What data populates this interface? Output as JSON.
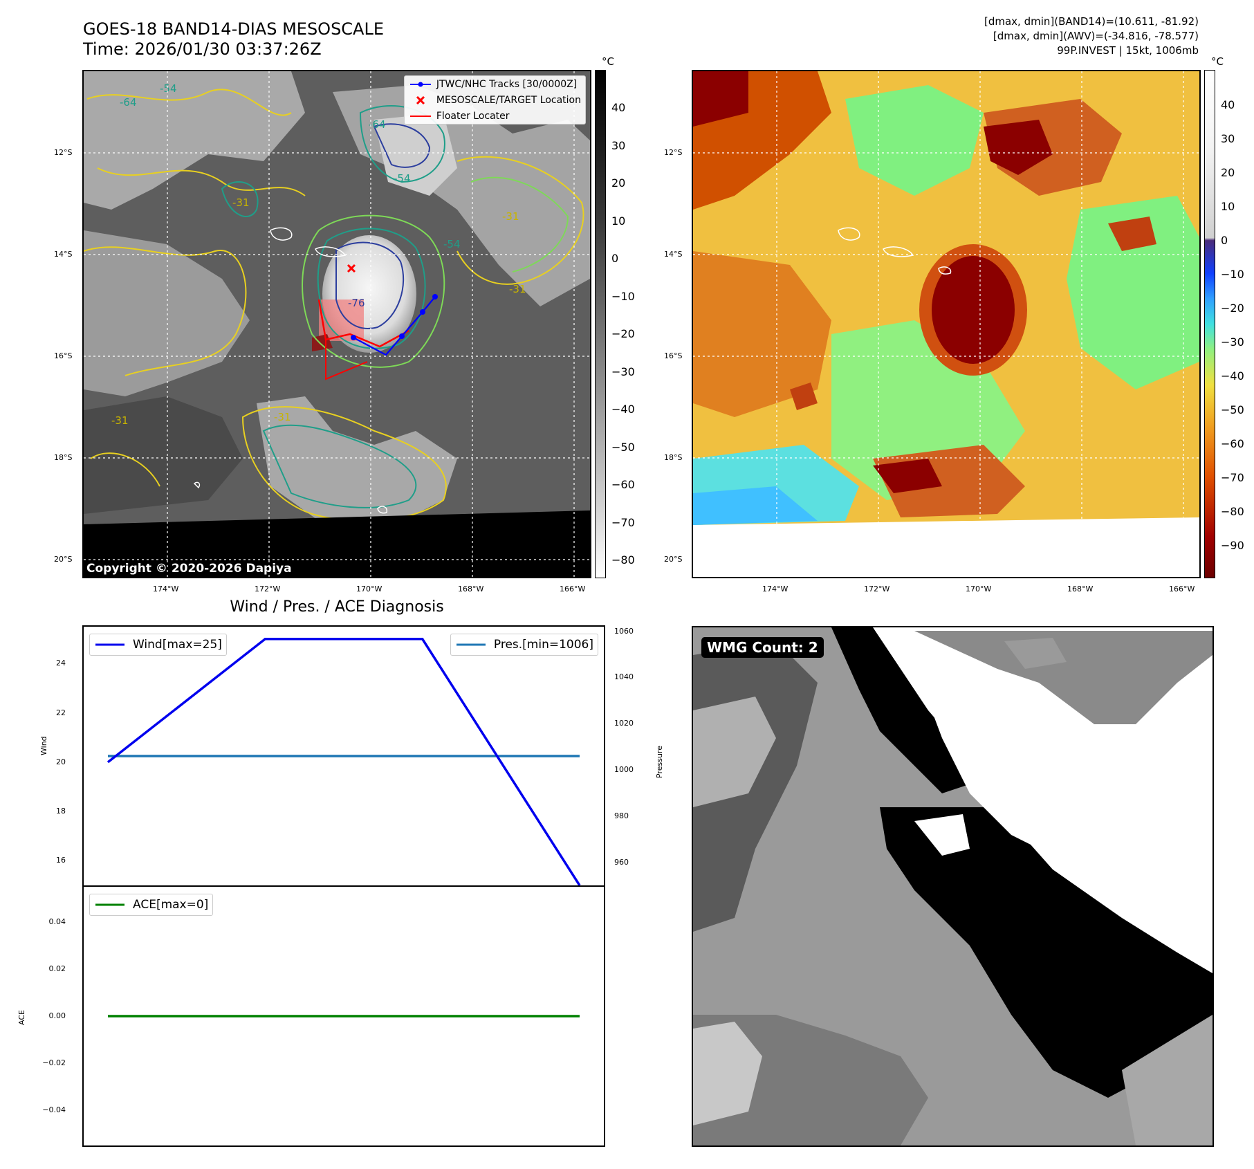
{
  "header": {
    "title_line1": "GOES-18 BAND14-DIAS MESOSCALE",
    "title_line2": "Time: 2026/01/30 03:37:26Z",
    "info_line1": "[dmax, dmin](BAND14)=(10.611, -81.92)",
    "info_line2": "[dmax, dmin](AWV)=(-34.816, -78.577)",
    "info_line3": "99P.INVEST | 15kt, 1006mb"
  },
  "map_axes": {
    "lat_labels": [
      "12°S",
      "14°S",
      "16°S",
      "18°S",
      "20°S"
    ],
    "lon_labels": [
      "174°W",
      "172°W",
      "170°W",
      "168°W",
      "166°W"
    ]
  },
  "ir_panel": {
    "legend": {
      "track_label": "JTWC/NHC Tracks [30/0000Z]",
      "target_label": "MESOSCALE/TARGET Location",
      "floater_label": "Floater Locater"
    },
    "copyright": "Copyright © 2020-2026 Dapiya",
    "contour_labels": [
      "-64",
      "-54",
      "-31",
      "-54",
      "-64",
      "-31",
      "-54",
      "-31",
      "-76",
      "-31",
      "-31"
    ],
    "colorbar": {
      "unit": "°C",
      "ticks": [
        "40",
        "30",
        "20",
        "10",
        "0",
        "−10",
        "−20",
        "−30",
        "−40",
        "−50",
        "−60",
        "−70",
        "−80"
      ]
    }
  },
  "awv_panel": {
    "colorbar": {
      "unit": "°C",
      "ticks": [
        "40",
        "30",
        "20",
        "10",
        "0",
        "−10",
        "−20",
        "−30",
        "−40",
        "−50",
        "−60",
        "−70",
        "−80",
        "−90"
      ]
    }
  },
  "diag_panel": {
    "title": "Wind / Pres. / ACE Diagnosis",
    "wind_ylabel": "Wind",
    "pres_ylabel": "Pressure",
    "ace_ylabel": "ACE",
    "wind_ticks": [
      "24",
      "22",
      "20",
      "18",
      "16"
    ],
    "pres_ticks": [
      "1060",
      "1040",
      "1020",
      "1000",
      "980",
      "960"
    ],
    "ace_ticks": [
      "0.04",
      "0.02",
      "0.00",
      "−0.02",
      "−0.04"
    ],
    "wind_legend": "Wind[max=25]",
    "pres_legend": "Pres.[min=1006]",
    "ace_legend": "ACE[max=0]"
  },
  "wmg_panel": {
    "label": "WMG Count: 2"
  },
  "colors": {
    "wind": "#0000ee",
    "pressure": "#1f77b4",
    "ace": "#008000",
    "track": "#0000ff",
    "target": "#ff0000",
    "floater": "#ff0000"
  },
  "chart_data": [
    {
      "type": "line",
      "title": "Wind / Pres. / ACE Diagnosis",
      "ylabel": "Wind",
      "ylim": [
        15,
        25.5
      ],
      "series": [
        {
          "name": "Wind[max=25]",
          "x": [
            0,
            1,
            2,
            3
          ],
          "values": [
            20,
            25,
            25,
            15
          ]
        }
      ]
    },
    {
      "type": "line",
      "ylabel": "Pressure",
      "ylim": [
        950,
        1062
      ],
      "series": [
        {
          "name": "Pres.[min=1006]",
          "x": [
            0,
            1,
            2,
            3
          ],
          "values": [
            1006,
            1006,
            1006,
            1006
          ]
        }
      ]
    },
    {
      "type": "line",
      "ylabel": "ACE",
      "ylim": [
        -0.055,
        0.055
      ],
      "series": [
        {
          "name": "ACE[max=0]",
          "x": [
            0,
            1,
            2,
            3
          ],
          "values": [
            0,
            0,
            0,
            0
          ]
        }
      ]
    }
  ]
}
